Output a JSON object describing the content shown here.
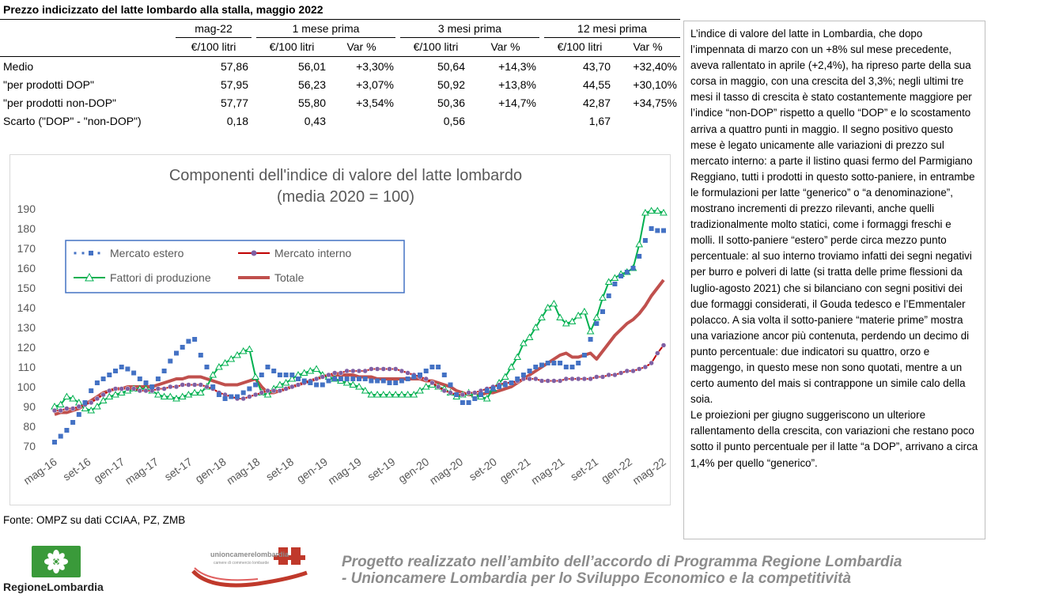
{
  "title": "Prezzo indicizzato del latte lombardo alla stalla, maggio 2022",
  "table": {
    "group_headers": [
      "mag-22",
      "1 mese prima",
      "3 mesi prima",
      "12 mesi prima"
    ],
    "sub_headers": [
      "€/100 litri",
      "€/100 litri",
      "Var %",
      "€/100 litri",
      "Var %",
      "€/100 litri",
      "Var %"
    ],
    "rows": [
      {
        "label": "Medio",
        "cells": [
          "57,86",
          "56,01",
          "+3,30%",
          "50,64",
          "+14,3%",
          "43,70",
          "+32,40%"
        ]
      },
      {
        "label": "\"per prodotti DOP\"",
        "cells": [
          "57,95",
          "56,23",
          "+3,07%",
          "50,92",
          "+13,8%",
          "44,55",
          "+30,10%"
        ]
      },
      {
        "label": "\"per prodotti non-DOP\"",
        "cells": [
          "57,77",
          "55,80",
          "+3,54%",
          "50,36",
          "+14,7%",
          "42,87",
          "+34,75%"
        ]
      },
      {
        "label": "Scarto (\"DOP\" - \"non-DOP\")",
        "cells": [
          "0,18",
          "0,43",
          "",
          "0,56",
          "",
          "1,67",
          ""
        ]
      }
    ]
  },
  "text_panel": {
    "paragraph1": "L’indice di valore del latte in Lombardia, che dopo l’impennata di marzo con un +8% sul mese precedente, aveva rallentato in aprile (+2,4%), ha ripreso parte della sua corsa in maggio, con una crescita del 3,3%; negli ultimi tre mesi il tasso di crescita è stato costantemente maggiore per l’indice “non-DOP” rispetto a quello “DOP” e lo scostamento arriva a quattro punti in maggio. Il segno positivo questo mese è legato unicamente alle variazioni di prezzo sul mercato interno: a parte il listino quasi fermo del Parmigiano Reggiano, tutti i prodotti in questo sotto-paniere, in entrambe le formulazioni per latte “generico” o “a denominazione”, mostrano incrementi di prezzo rilevanti, anche quelli tradizionalmente molto statici, come i formaggi freschi e molli. Il sotto-paniere “estero” perde circa mezzo punto percentuale: al suo interno troviamo infatti dei segni negativi per burro e polveri di latte (si tratta delle prime flessioni da luglio-agosto 2021) che si bilanciano con segni positivi dei due formaggi considerati, il Gouda tedesco e l’Emmentaler polacco. A sia volta il sotto-paniere “materie prime” mostra una variazione ancor più contenuta, perdendo un decimo di punto percentuale: due indicatori su quattro, orzo e maggengo, in questo mese non sono quotati, mentre a un certo aumento del mais si contrappone un simile calo della soia.",
    "paragraph2": "Le proiezioni per giugno suggeriscono un ulteriore rallentamento della crescita, con variazioni che restano poco sotto il punto percentuale per il latte “a DOP”, arrivano a circa 1,4% per quello “generico”."
  },
  "source": "Fonte: OMPZ su dati CCIAA, PZ, ZMB",
  "footer": {
    "region_logo_text": "RegioneLombardia",
    "uc_logo_text": "unioncamerelombardia",
    "uc_logo_subtext": "camere di commercio lombarde",
    "project_line1": "Progetto realizzato nell’ambito dell’accordo di Programma Regione Lombardia",
    "project_line2": "- Unioncamere Lombardia per lo Sviluppo Economico e la competitività"
  },
  "chart_data": {
    "type": "line",
    "title": "Componenti dell'indice di valore del latte lombardo",
    "subtitle": "(media 2020 = 100)",
    "ylim": [
      70,
      190
    ],
    "yticks": [
      70,
      80,
      90,
      100,
      110,
      120,
      130,
      140,
      150,
      160,
      170,
      180,
      190
    ],
    "xtick_labels": [
      "mag-16",
      "set-16",
      "gen-17",
      "mag-17",
      "set-17",
      "gen-18",
      "mag-18",
      "set-18",
      "gen-19",
      "mag-19",
      "set-19",
      "gen-20",
      "mag-20",
      "set-20",
      "gen-21",
      "mag-21",
      "set-21",
      "gen-22",
      "mag-22"
    ],
    "x_start": "mag-16",
    "x_end": "mag-22",
    "legend_position": "top-left",
    "grid": false,
    "series": [
      {
        "name": "Mercato estero",
        "color": "#4472c4",
        "style": "dotted-square",
        "values": [
          72,
          75,
          78,
          82,
          86,
          92,
          98,
          102,
          104,
          106,
          108,
          110,
          109,
          107,
          104,
          102,
          100,
          104,
          108,
          113,
          117,
          120,
          123,
          124,
          116,
          110,
          100,
          96,
          94,
          95,
          95,
          97,
          99,
          101,
          106,
          110,
          108,
          106,
          106,
          106,
          104,
          103,
          102,
          101,
          101,
          103,
          104,
          104,
          104,
          104,
          104,
          104,
          103,
          103,
          103,
          102,
          102,
          103,
          104,
          105,
          106,
          108,
          110,
          110,
          106,
          101,
          96,
          92,
          92,
          94,
          96,
          98,
          99,
          100,
          101,
          102,
          104,
          106,
          108,
          110,
          111,
          112,
          112,
          112,
          110,
          110,
          112,
          116,
          124,
          132,
          138,
          146,
          152,
          156,
          158,
          160,
          166,
          174,
          180,
          179,
          179
        ]
      },
      {
        "name": "Mercato interno",
        "color": "#c00000",
        "marker_color": "#7f5fa3",
        "style": "line-circle",
        "values": [
          88,
          88,
          89,
          89,
          90,
          91,
          92,
          94,
          96,
          98,
          99,
          99,
          99,
          99,
          98,
          98,
          98,
          99,
          99,
          100,
          100,
          101,
          101,
          101,
          101,
          100,
          99,
          97,
          96,
          95,
          94,
          94,
          95,
          96,
          97,
          98,
          98,
          98,
          99,
          100,
          101,
          102,
          103,
          104,
          105,
          106,
          107,
          107,
          108,
          108,
          108,
          108,
          109,
          109,
          109,
          109,
          109,
          108,
          107,
          106,
          105,
          104,
          102,
          100,
          98,
          97,
          96,
          96,
          97,
          97,
          98,
          99,
          100,
          101,
          102,
          102,
          103,
          104,
          104,
          104,
          103,
          103,
          103,
          103,
          104,
          104,
          104,
          104,
          104,
          105,
          105,
          106,
          106,
          107,
          108,
          108,
          109,
          110,
          112,
          117,
          121
        ]
      },
      {
        "name": "Fattori di produzione",
        "color": "#00b050",
        "style": "line-triangle",
        "values": [
          90,
          91,
          95,
          94,
          92,
          89,
          88,
          90,
          93,
          95,
          96,
          97,
          98,
          99,
          99,
          99,
          98,
          96,
          95,
          95,
          94,
          95,
          96,
          97,
          97,
          100,
          106,
          110,
          112,
          114,
          116,
          118,
          119,
          105,
          97,
          96,
          99,
          101,
          102,
          104,
          106,
          107,
          108,
          109,
          106,
          105,
          104,
          103,
          102,
          101,
          100,
          98,
          96,
          96,
          96,
          96,
          96,
          96,
          96,
          96,
          98,
          100,
          101,
          100,
          99,
          97,
          95,
          96,
          97,
          96,
          95,
          94,
          99,
          102,
          105,
          110,
          115,
          122,
          125,
          130,
          135,
          140,
          142,
          135,
          132,
          133,
          136,
          138,
          128,
          135,
          145,
          153,
          155,
          157,
          158,
          160,
          172,
          188,
          189,
          189,
          188
        ]
      },
      {
        "name": "Totale",
        "color": "#c0504d",
        "style": "thick-line",
        "values": [
          86,
          87,
          87,
          88,
          89,
          91,
          93,
          95,
          97,
          98,
          99,
          99,
          100,
          100,
          100,
          100,
          100,
          101,
          102,
          103,
          104,
          104,
          105,
          105,
          105,
          104,
          103,
          102,
          101,
          101,
          101,
          102,
          103,
          104,
          100,
          97,
          97,
          98,
          99,
          100,
          101,
          102,
          103,
          104,
          105,
          106,
          106,
          106,
          106,
          106,
          105,
          105,
          105,
          104,
          104,
          104,
          104,
          104,
          104,
          104,
          104,
          103,
          103,
          102,
          101,
          100,
          98,
          97,
          96,
          96,
          96,
          97,
          97,
          98,
          99,
          100,
          102,
          104,
          106,
          108,
          110,
          112,
          114,
          116,
          117,
          115,
          115,
          116,
          117,
          114,
          118,
          122,
          126,
          129,
          132,
          134,
          137,
          141,
          146,
          150,
          154
        ]
      }
    ]
  }
}
